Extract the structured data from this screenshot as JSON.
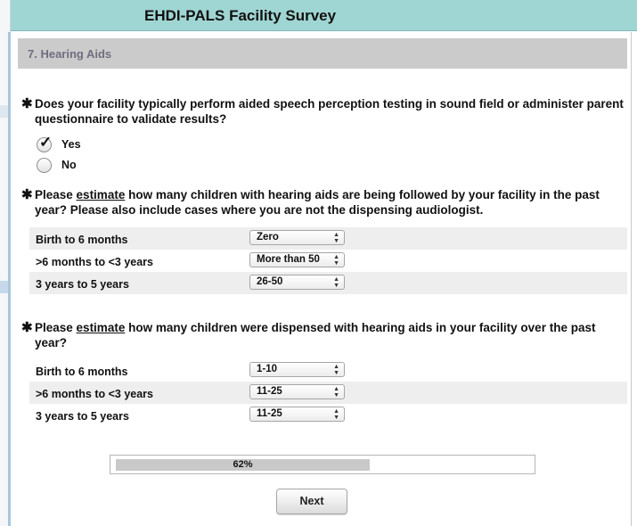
{
  "header": {
    "title": "EHDI-PALS Facility Survey"
  },
  "section": {
    "title": "7. Hearing Aids"
  },
  "q1": {
    "star": "✱",
    "text": "Does your facility typically perform aided speech perception testing in sound field or administer parent questionnaire to validate results?",
    "options": [
      {
        "label": "Yes",
        "checked": true
      },
      {
        "label": "No",
        "checked": false
      }
    ]
  },
  "q2": {
    "star": "✱",
    "text_pre": "Please ",
    "text_u": "estimate",
    "text_post": " how many children with hearing aids are being followed by your facility in the past year? Please also include cases where you are not the dispensing audiologist.",
    "rows": [
      {
        "label": "Birth to 6 months",
        "value": "Zero"
      },
      {
        "label": ">6 months to <3 years",
        "value": "More than 50"
      },
      {
        "label": "3 years to 5 years",
        "value": "26-50"
      }
    ]
  },
  "q3": {
    "star": "✱",
    "text_pre": "Please ",
    "text_u": "estimate",
    "text_post": " how many children were dispensed with hearing aids in your facility over the past year?",
    "rows": [
      {
        "label": "Birth to 6 months",
        "value": "1-10"
      },
      {
        "label": ">6 months to <3 years",
        "value": "11-25"
      },
      {
        "label": "3 years to 5 years",
        "value": "11-25"
      }
    ]
  },
  "progress": {
    "label": "62%",
    "fraction": 0.62
  },
  "nav": {
    "next_label": "Next"
  },
  "icons": {
    "required": "asterisk-icon",
    "select_arrows": "updown-arrows-icon",
    "check": "checkmark-icon"
  }
}
